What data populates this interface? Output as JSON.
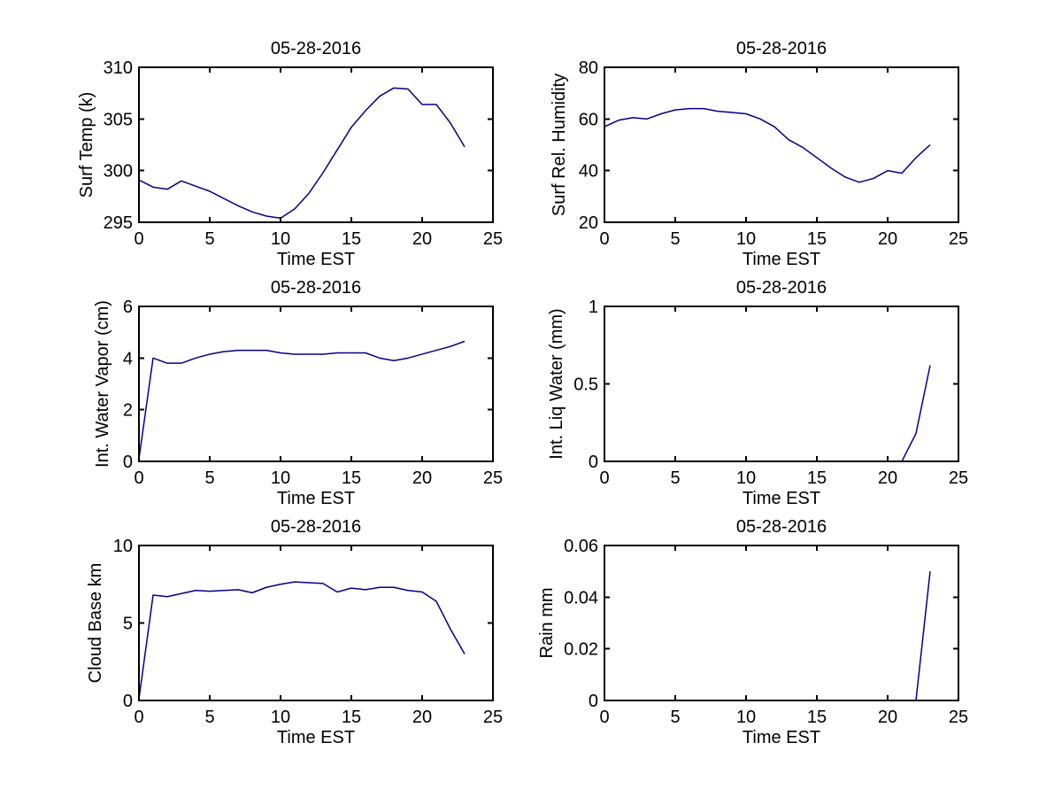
{
  "figure": {
    "background": "#FFFFFF",
    "axis_color": "#000000",
    "text_color": "#000000",
    "line_color": "#00008B"
  },
  "chart_data": [
    {
      "type": "line",
      "title": "05-28-2016",
      "xlabel": "Time EST",
      "ylabel": "Surf Temp (k)",
      "xlim": [
        0,
        25
      ],
      "ylim": [
        295,
        310
      ],
      "xticks": [
        "0",
        "5",
        "10",
        "15",
        "20",
        "25"
      ],
      "yticks": [
        "295",
        "300",
        "305",
        "310"
      ],
      "grid": "off",
      "legend": "none",
      "x": [
        0,
        1,
        2,
        3,
        4,
        5,
        6,
        7,
        8,
        9,
        10,
        11,
        12,
        13,
        14,
        15,
        16,
        17,
        18,
        19,
        20,
        21,
        22,
        23
      ],
      "y": [
        299.1,
        298.4,
        298.2,
        299.0,
        298.5,
        298.0,
        297.3,
        296.6,
        296.0,
        295.6,
        295.4,
        296.3,
        297.8,
        299.8,
        302.0,
        304.2,
        305.8,
        307.2,
        308.0,
        307.9,
        306.4,
        306.4,
        304.6,
        302.3
      ]
    },
    {
      "type": "line",
      "title": "05-28-2016",
      "xlabel": "Time EST",
      "ylabel": "Surf Rel. Humidity",
      "xlim": [
        0,
        25
      ],
      "ylim": [
        20,
        80
      ],
      "xticks": [
        "0",
        "5",
        "10",
        "15",
        "20",
        "25"
      ],
      "yticks": [
        "20",
        "40",
        "60",
        "80"
      ],
      "grid": "off",
      "legend": "none",
      "x": [
        0,
        1,
        2,
        3,
        4,
        5,
        6,
        7,
        8,
        9,
        10,
        11,
        12,
        13,
        14,
        15,
        16,
        17,
        18,
        19,
        20,
        21,
        22,
        23
      ],
      "y": [
        57,
        59.5,
        60.5,
        60,
        62,
        63.5,
        64,
        64,
        63,
        62.5,
        62,
        60,
        57,
        52,
        49,
        45,
        41,
        37.5,
        35.5,
        37,
        40,
        39,
        45,
        50
      ]
    },
    {
      "type": "line",
      "title": "05-28-2016",
      "xlabel": "Time EST",
      "ylabel": "Int. Water Vapor (cm)",
      "xlim": [
        0,
        25
      ],
      "ylim": [
        0,
        6
      ],
      "xticks": [
        "0",
        "5",
        "10",
        "15",
        "20",
        "25"
      ],
      "yticks": [
        "0",
        "2",
        "4",
        "6"
      ],
      "grid": "off",
      "legend": "none",
      "x": [
        0,
        1,
        2,
        3,
        4,
        5,
        6,
        7,
        8,
        9,
        10,
        11,
        12,
        13,
        14,
        15,
        16,
        17,
        18,
        19,
        20,
        21,
        22,
        23
      ],
      "y": [
        0.1,
        4.0,
        3.8,
        3.8,
        4.0,
        4.15,
        4.25,
        4.3,
        4.3,
        4.3,
        4.2,
        4.15,
        4.15,
        4.15,
        4.2,
        4.2,
        4.2,
        4.0,
        3.9,
        4.0,
        4.15,
        4.3,
        4.45,
        4.65
      ]
    },
    {
      "type": "line",
      "title": "05-28-2016",
      "xlabel": "Time EST",
      "ylabel": "Int. Liq Water (mm)",
      "xlim": [
        0,
        25
      ],
      "ylim": [
        0,
        1
      ],
      "xticks": [
        "0",
        "5",
        "10",
        "15",
        "20",
        "25"
      ],
      "yticks": [
        "0",
        "0.5",
        "1"
      ],
      "grid": "off",
      "legend": "none",
      "x": [
        0,
        1,
        2,
        3,
        4,
        5,
        6,
        7,
        8,
        9,
        10,
        11,
        12,
        13,
        14,
        15,
        16,
        17,
        18,
        19,
        20,
        21,
        22,
        23
      ],
      "y": [
        0,
        0,
        0,
        0,
        0,
        0,
        0,
        0,
        0,
        0,
        0,
        0,
        0,
        0,
        0,
        0,
        0,
        0,
        0,
        0,
        0,
        0,
        0.18,
        0.62
      ]
    },
    {
      "type": "line",
      "title": "05-28-2016",
      "xlabel": "Time EST",
      "ylabel": "Cloud Base km",
      "xlim": [
        0,
        25
      ],
      "ylim": [
        0,
        10
      ],
      "xticks": [
        "0",
        "5",
        "10",
        "15",
        "20",
        "25"
      ],
      "yticks": [
        "0",
        "5",
        "10"
      ],
      "grid": "off",
      "legend": "none",
      "x": [
        0,
        1,
        2,
        3,
        4,
        5,
        6,
        7,
        8,
        9,
        10,
        11,
        12,
        13,
        14,
        15,
        16,
        17,
        18,
        19,
        20,
        21,
        22,
        23
      ],
      "y": [
        0.1,
        6.8,
        6.7,
        6.9,
        7.1,
        7.05,
        7.1,
        7.15,
        6.95,
        7.3,
        7.5,
        7.65,
        7.6,
        7.55,
        7.0,
        7.25,
        7.15,
        7.3,
        7.3,
        7.1,
        7.0,
        6.4,
        4.6,
        3.0
      ]
    },
    {
      "type": "line",
      "title": "05-28-2016",
      "xlabel": "Time EST",
      "ylabel": "Rain mm",
      "xlim": [
        0,
        25
      ],
      "ylim": [
        0,
        0.06
      ],
      "xticks": [
        "0",
        "5",
        "10",
        "15",
        "20",
        "25"
      ],
      "yticks": [
        "0",
        "0.02",
        "0.04",
        "0.06"
      ],
      "grid": "off",
      "legend": "none",
      "x": [
        0,
        1,
        2,
        3,
        4,
        5,
        6,
        7,
        8,
        9,
        10,
        11,
        12,
        13,
        14,
        15,
        16,
        17,
        18,
        19,
        20,
        21,
        22,
        23
      ],
      "y": [
        0,
        0,
        0,
        0,
        0,
        0,
        0,
        0,
        0,
        0,
        0,
        0,
        0,
        0,
        0,
        0,
        0,
        0,
        0,
        0,
        0,
        0,
        0,
        0.05
      ]
    }
  ]
}
